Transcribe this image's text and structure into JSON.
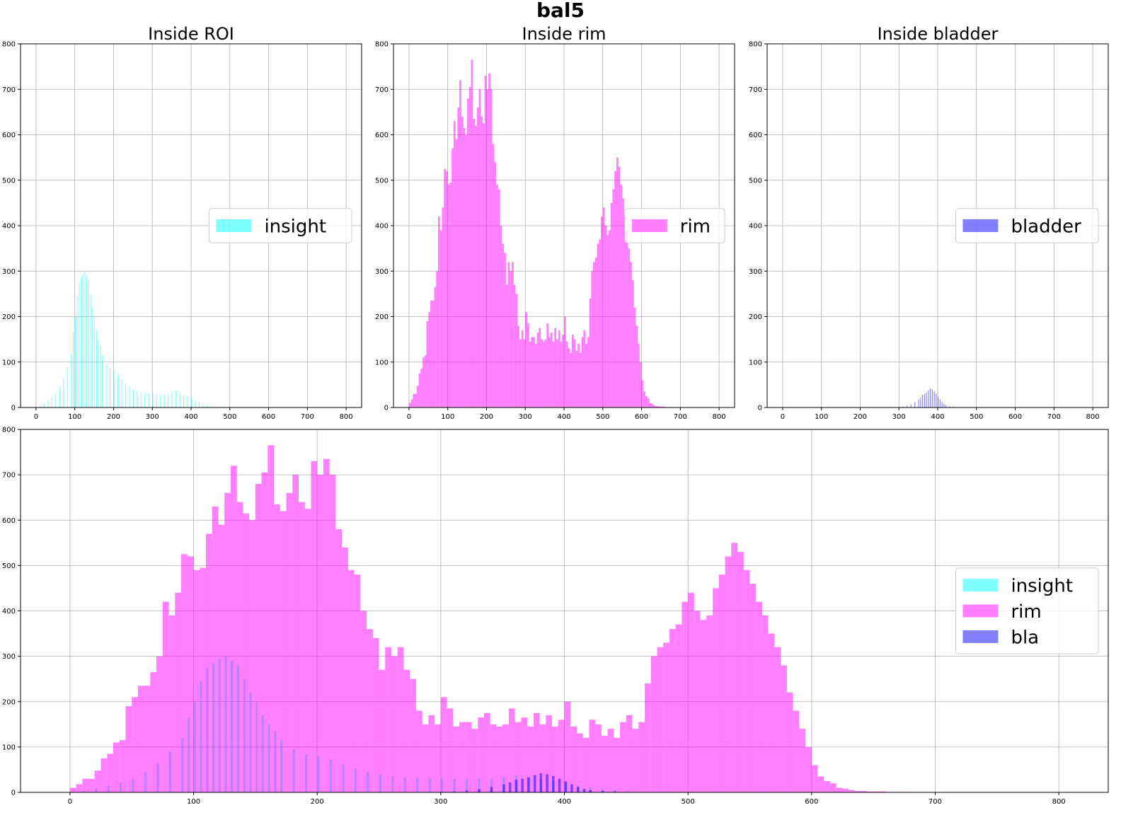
{
  "figure": {
    "suptitle": "bal5"
  },
  "colors": {
    "insight": "#00ffff",
    "rim": "#ff00ff",
    "bladder": "#0000ff",
    "grid": "#b0b0b0"
  },
  "chart_data": [
    {
      "id": "roi",
      "type": "histogram",
      "title": "Inside ROI",
      "xlabel": "",
      "ylabel": "",
      "xlim": [
        -40,
        840
      ],
      "ylim": [
        0,
        800
      ],
      "xticks": [
        0,
        100,
        200,
        300,
        400,
        500,
        600,
        700,
        800
      ],
      "yticks": [
        0,
        100,
        200,
        300,
        400,
        500,
        600,
        700,
        800
      ],
      "grid": true,
      "legend": {
        "position": "center-right",
        "entries": [
          "insight"
        ]
      },
      "series": [
        {
          "name": "insight",
          "color_key": "insight",
          "opacity": 0.5,
          "bin_width": 2,
          "x": [
            10,
            20,
            30,
            40,
            50,
            60,
            70,
            80,
            90,
            95,
            100,
            105,
            110,
            115,
            120,
            125,
            130,
            135,
            140,
            145,
            150,
            155,
            160,
            165,
            170,
            180,
            190,
            200,
            210,
            220,
            230,
            240,
            250,
            260,
            270,
            280,
            290,
            300,
            310,
            320,
            330,
            340,
            350,
            360,
            370,
            380,
            390,
            400,
            410,
            420,
            430,
            440,
            450,
            460
          ],
          "y": [
            3,
            8,
            15,
            22,
            30,
            45,
            65,
            90,
            120,
            165,
            200,
            245,
            275,
            285,
            295,
            300,
            290,
            280,
            250,
            220,
            200,
            170,
            150,
            135,
            115,
            95,
            85,
            80,
            72,
            62,
            52,
            45,
            40,
            35,
            33,
            32,
            31,
            30,
            30,
            28,
            30,
            32,
            35,
            38,
            32,
            28,
            25,
            20,
            15,
            11,
            8,
            5,
            2,
            0
          ]
        }
      ]
    },
    {
      "id": "rim",
      "type": "histogram",
      "title": "Inside rim",
      "xlabel": "",
      "ylabel": "",
      "xlim": [
        -40,
        840
      ],
      "ylim": [
        0,
        800
      ],
      "xticks": [
        0,
        100,
        200,
        300,
        400,
        500,
        600,
        700,
        800
      ],
      "yticks": [
        0,
        100,
        200,
        300,
        400,
        500,
        600,
        700,
        800
      ],
      "grid": true,
      "legend": {
        "position": "center-right",
        "entries": [
          "rim"
        ]
      },
      "series": [
        {
          "name": "rim",
          "color_key": "rim",
          "opacity": 0.5,
          "bin_width": 5,
          "x": [
            0,
            5,
            10,
            15,
            20,
            25,
            30,
            35,
            40,
            45,
            50,
            55,
            60,
            65,
            70,
            75,
            80,
            85,
            90,
            95,
            100,
            105,
            110,
            115,
            120,
            125,
            130,
            135,
            140,
            145,
            150,
            155,
            160,
            165,
            170,
            175,
            180,
            185,
            190,
            195,
            200,
            205,
            210,
            215,
            220,
            225,
            230,
            235,
            240,
            245,
            250,
            255,
            260,
            265,
            270,
            275,
            280,
            285,
            290,
            295,
            300,
            305,
            310,
            315,
            320,
            325,
            330,
            335,
            340,
            345,
            350,
            355,
            360,
            365,
            370,
            375,
            380,
            385,
            390,
            395,
            400,
            405,
            410,
            415,
            420,
            425,
            430,
            435,
            440,
            445,
            450,
            455,
            460,
            465,
            470,
            475,
            480,
            485,
            490,
            495,
            500,
            505,
            510,
            515,
            520,
            525,
            530,
            535,
            540,
            545,
            550,
            555,
            560,
            565,
            570,
            575,
            580,
            585,
            590,
            595,
            600,
            605,
            610,
            615,
            620,
            625,
            630,
            635,
            640,
            645,
            650,
            655,
            660,
            665,
            670,
            675,
            680,
            685,
            690,
            695,
            700,
            705,
            710,
            715,
            720,
            725,
            730,
            735,
            740,
            745,
            750,
            755,
            760,
            765,
            770,
            775,
            780,
            785,
            790,
            795
          ],
          "y": [
            10,
            18,
            30,
            30,
            48,
            75,
            85,
            110,
            115,
            190,
            210,
            235,
            235,
            265,
            300,
            420,
            390,
            440,
            525,
            520,
            490,
            495,
            570,
            630,
            590,
            660,
            720,
            640,
            615,
            600,
            680,
            705,
            765,
            635,
            620,
            660,
            700,
            640,
            625,
            730,
            700,
            735,
            700,
            580,
            540,
            490,
            480,
            400,
            360,
            340,
            270,
            320,
            300,
            320,
            270,
            250,
            180,
            150,
            170,
            150,
            210,
            185,
            145,
            155,
            155,
            140,
            165,
            175,
            150,
            145,
            150,
            185,
            155,
            165,
            145,
            175,
            150,
            170,
            145,
            160,
            200,
            145,
            130,
            120,
            160,
            150,
            125,
            140,
            120,
            155,
            170,
            140,
            155,
            240,
            300,
            320,
            330,
            360,
            370,
            420,
            440,
            400,
            380,
            390,
            450,
            480,
            520,
            550,
            530,
            490,
            460,
            420,
            390,
            350,
            320,
            280,
            220,
            180,
            140,
            100,
            60,
            35,
            25,
            20,
            10,
            8,
            5,
            3,
            3,
            2,
            2,
            2,
            1,
            1,
            1,
            1,
            0,
            0,
            0,
            0,
            0,
            0,
            0,
            0,
            0,
            0,
            0,
            0,
            0,
            0,
            0,
            0,
            0,
            0,
            0,
            0,
            0,
            0,
            0,
            0
          ]
        }
      ]
    },
    {
      "id": "bladder",
      "type": "histogram",
      "title": "Inside bladder",
      "xlabel": "",
      "ylabel": "",
      "xlim": [
        -40,
        840
      ],
      "ylim": [
        0,
        800
      ],
      "xticks": [
        0,
        100,
        200,
        300,
        400,
        500,
        600,
        700,
        800
      ],
      "yticks": [
        0,
        100,
        200,
        300,
        400,
        500,
        600,
        700,
        800
      ],
      "grid": true,
      "legend": {
        "position": "center-right",
        "entries": [
          "bladder"
        ]
      },
      "series": [
        {
          "name": "bladder",
          "color_key": "bladder",
          "opacity": 0.5,
          "bin_width": 2,
          "x": [
            300,
            310,
            320,
            330,
            340,
            350,
            355,
            360,
            365,
            370,
            375,
            380,
            385,
            390,
            395,
            400,
            405,
            410,
            415,
            420,
            430,
            440,
            450
          ],
          "y": [
            1,
            2,
            4,
            7,
            12,
            18,
            22,
            28,
            30,
            33,
            38,
            42,
            40,
            36,
            30,
            24,
            18,
            12,
            8,
            5,
            3,
            2,
            1
          ]
        }
      ]
    },
    {
      "id": "combined",
      "type": "histogram",
      "title": "",
      "xlabel": "",
      "ylabel": "",
      "xlim": [
        -40,
        840
      ],
      "ylim": [
        0,
        800
      ],
      "xticks": [
        0,
        100,
        200,
        300,
        400,
        500,
        600,
        700,
        800
      ],
      "yticks": [
        0,
        100,
        200,
        300,
        400,
        500,
        600,
        700,
        800
      ],
      "grid": true,
      "legend": {
        "position": "center-right",
        "entries": [
          "insight",
          "rim",
          "bla"
        ]
      },
      "series": [
        {
          "name": "insight",
          "color_key": "insight",
          "opacity": 0.5,
          "bin_width": 2,
          "x": [
            10,
            20,
            30,
            40,
            50,
            60,
            70,
            80,
            90,
            95,
            100,
            105,
            110,
            115,
            120,
            125,
            130,
            135,
            140,
            145,
            150,
            155,
            160,
            165,
            170,
            180,
            190,
            200,
            210,
            220,
            230,
            240,
            250,
            260,
            270,
            280,
            290,
            300,
            310,
            320,
            330,
            340,
            350,
            360,
            370,
            380,
            390,
            400,
            410,
            420,
            430,
            440,
            450,
            460
          ],
          "y": [
            3,
            8,
            15,
            22,
            30,
            45,
            65,
            90,
            120,
            165,
            200,
            245,
            275,
            285,
            295,
            300,
            290,
            280,
            250,
            220,
            200,
            170,
            150,
            135,
            115,
            95,
            85,
            80,
            72,
            62,
            52,
            45,
            40,
            35,
            33,
            32,
            31,
            30,
            30,
            28,
            30,
            32,
            35,
            38,
            32,
            28,
            25,
            20,
            15,
            11,
            8,
            5,
            2,
            0
          ]
        },
        {
          "name": "rim",
          "color_key": "rim",
          "opacity": 0.5,
          "bin_width": 5,
          "x": [
            0,
            5,
            10,
            15,
            20,
            25,
            30,
            35,
            40,
            45,
            50,
            55,
            60,
            65,
            70,
            75,
            80,
            85,
            90,
            95,
            100,
            105,
            110,
            115,
            120,
            125,
            130,
            135,
            140,
            145,
            150,
            155,
            160,
            165,
            170,
            175,
            180,
            185,
            190,
            195,
            200,
            205,
            210,
            215,
            220,
            225,
            230,
            235,
            240,
            245,
            250,
            255,
            260,
            265,
            270,
            275,
            280,
            285,
            290,
            295,
            300,
            305,
            310,
            315,
            320,
            325,
            330,
            335,
            340,
            345,
            350,
            355,
            360,
            365,
            370,
            375,
            380,
            385,
            390,
            395,
            400,
            405,
            410,
            415,
            420,
            425,
            430,
            435,
            440,
            445,
            450,
            455,
            460,
            465,
            470,
            475,
            480,
            485,
            490,
            495,
            500,
            505,
            510,
            515,
            520,
            525,
            530,
            535,
            540,
            545,
            550,
            555,
            560,
            565,
            570,
            575,
            580,
            585,
            590,
            595,
            600,
            605,
            610,
            615,
            620,
            625,
            630,
            635,
            640,
            645,
            650,
            655,
            660,
            665,
            670,
            675,
            680,
            685,
            690,
            695,
            700,
            705,
            710,
            715,
            720,
            725,
            730,
            735,
            740,
            745,
            750,
            755,
            760,
            765,
            770,
            775,
            780,
            785,
            790,
            795
          ],
          "y": [
            10,
            18,
            30,
            30,
            48,
            75,
            85,
            110,
            115,
            190,
            210,
            235,
            235,
            265,
            300,
            420,
            390,
            440,
            525,
            520,
            490,
            495,
            570,
            630,
            590,
            660,
            720,
            640,
            615,
            600,
            680,
            705,
            765,
            635,
            620,
            660,
            700,
            640,
            625,
            730,
            700,
            735,
            700,
            580,
            540,
            490,
            480,
            400,
            360,
            340,
            270,
            320,
            300,
            320,
            270,
            250,
            180,
            150,
            170,
            150,
            210,
            185,
            145,
            155,
            155,
            140,
            165,
            175,
            150,
            145,
            150,
            185,
            155,
            165,
            145,
            175,
            150,
            170,
            145,
            160,
            200,
            145,
            130,
            120,
            160,
            150,
            125,
            140,
            120,
            155,
            170,
            140,
            155,
            240,
            300,
            320,
            330,
            360,
            370,
            420,
            440,
            400,
            380,
            390,
            450,
            480,
            520,
            550,
            530,
            490,
            460,
            420,
            390,
            350,
            320,
            280,
            220,
            180,
            140,
            100,
            60,
            35,
            25,
            20,
            10,
            8,
            5,
            3,
            3,
            2,
            2,
            2,
            1,
            1,
            1,
            1,
            0,
            0,
            0,
            0,
            0,
            0,
            0,
            0,
            0,
            0,
            0,
            0,
            0,
            0,
            0,
            0,
            0,
            0,
            0,
            0,
            0,
            0,
            0,
            0
          ]
        },
        {
          "name": "bla",
          "color_key": "bladder",
          "opacity": 0.5,
          "bin_width": 2,
          "x": [
            300,
            310,
            320,
            330,
            340,
            350,
            355,
            360,
            365,
            370,
            375,
            380,
            385,
            390,
            395,
            400,
            405,
            410,
            415,
            420,
            430,
            440,
            450
          ],
          "y": [
            1,
            2,
            4,
            7,
            12,
            18,
            22,
            28,
            30,
            33,
            38,
            42,
            40,
            36,
            30,
            24,
            18,
            12,
            8,
            5,
            3,
            2,
            1
          ]
        }
      ]
    }
  ]
}
